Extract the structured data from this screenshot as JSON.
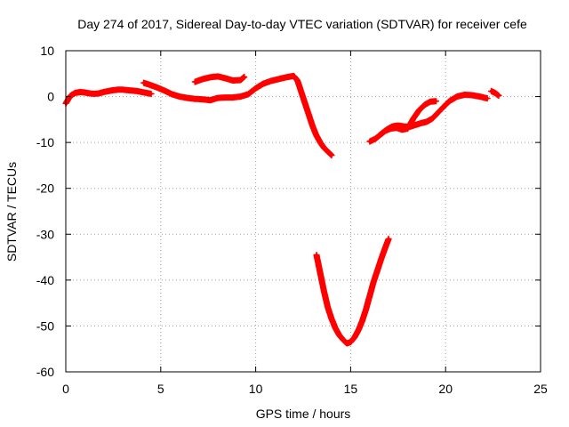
{
  "chart_data": {
    "type": "scatter",
    "title": "Day 274 of 2017, Sidereal Day-to-day VTEC variation (SDTVAR) for receiver cefe",
    "xlabel": "GPS time / hours",
    "ylabel": "SDTVAR / TECUs",
    "xlim": [
      0,
      25
    ],
    "ylim": [
      -60,
      10
    ],
    "xticks": [
      0,
      5,
      10,
      15,
      20,
      25
    ],
    "yticks": [
      10,
      0,
      -10,
      -20,
      -30,
      -40,
      -50,
      -60
    ],
    "grid": true,
    "marker": "plus",
    "color": "#ff0000",
    "series": [
      {
        "name": "segment-1",
        "x": [
          0.0,
          0.1,
          0.25,
          0.5,
          0.75,
          1.0,
          1.25,
          1.5,
          1.75,
          2.0,
          2.25,
          2.5,
          2.75,
          3.0,
          3.25,
          3.5,
          3.75,
          4.0,
          4.25,
          4.5
        ],
        "y": [
          -1.5,
          -0.8,
          0.2,
          0.8,
          1.0,
          0.9,
          0.7,
          0.6,
          0.7,
          1.0,
          1.2,
          1.4,
          1.5,
          1.5,
          1.4,
          1.3,
          1.2,
          1.0,
          0.8,
          0.6
        ]
      },
      {
        "name": "segment-2",
        "x": [
          4.1,
          4.4,
          4.8,
          5.2,
          5.6,
          6.0,
          6.4,
          6.8,
          7.2,
          7.6,
          8.0,
          8.4,
          8.8,
          9.2,
          9.6,
          10.0,
          10.4,
          10.8,
          11.2,
          11.6,
          12.0,
          12.2,
          12.4,
          12.6,
          12.8,
          13.0,
          13.2,
          13.4,
          13.6,
          13.8,
          14.0
        ],
        "y": [
          3.0,
          2.6,
          2.0,
          1.3,
          0.5,
          0.0,
          -0.3,
          -0.5,
          -0.6,
          -0.8,
          -0.3,
          -0.2,
          -0.2,
          0.0,
          0.5,
          1.8,
          2.8,
          3.4,
          3.8,
          4.2,
          4.5,
          3.5,
          1.0,
          -1.5,
          -4.0,
          -6.5,
          -8.5,
          -10.0,
          -11.2,
          -12.0,
          -12.8
        ]
      },
      {
        "name": "segment-3",
        "x": [
          6.8,
          7.2,
          7.6,
          8.0,
          8.4,
          8.8,
          9.2,
          9.4
        ],
        "y": [
          3.2,
          3.8,
          4.2,
          4.4,
          4.0,
          3.5,
          3.6,
          4.3
        ]
      },
      {
        "name": "segment-4",
        "x": [
          13.2,
          13.4,
          13.6,
          13.8,
          14.0,
          14.2,
          14.4,
          14.6,
          14.8,
          15.0,
          15.2,
          15.4,
          15.6,
          15.8,
          16.0,
          16.2,
          16.4,
          16.6,
          16.8,
          17.0
        ],
        "y": [
          -34.5,
          -38.5,
          -42.5,
          -46.0,
          -48.5,
          -50.5,
          -52.0,
          -53.0,
          -53.8,
          -53.5,
          -52.5,
          -51.0,
          -49.0,
          -46.5,
          -43.5,
          -40.5,
          -38.0,
          -35.5,
          -33.2,
          -31.0
        ]
      },
      {
        "name": "segment-5",
        "x": [
          16.0,
          16.3,
          16.6,
          16.9,
          17.2,
          17.5,
          17.8,
          18.1,
          18.4,
          18.7,
          19.0,
          19.3,
          19.6,
          19.9,
          20.2,
          20.6,
          21.0,
          21.4,
          21.8,
          22.2
        ],
        "y": [
          -9.8,
          -9.2,
          -8.2,
          -7.2,
          -6.5,
          -6.3,
          -6.5,
          -6.6,
          -6.2,
          -5.8,
          -5.5,
          -4.8,
          -3.5,
          -2.2,
          -1.0,
          0.0,
          0.4,
          0.3,
          0.0,
          -0.4
        ]
      },
      {
        "name": "segment-6",
        "x": [
          16.5,
          16.8,
          17.1,
          17.4,
          17.7,
          18.0,
          18.3,
          18.6,
          18.9,
          19.2,
          19.5
        ],
        "y": [
          -8.5,
          -7.5,
          -7.0,
          -6.8,
          -7.2,
          -7.0,
          -4.8,
          -3.0,
          -1.8,
          -1.1,
          -1.0
        ]
      },
      {
        "name": "segment-7",
        "x": [
          22.4,
          22.6,
          22.8
        ],
        "y": [
          1.2,
          0.8,
          0.2
        ]
      }
    ]
  }
}
